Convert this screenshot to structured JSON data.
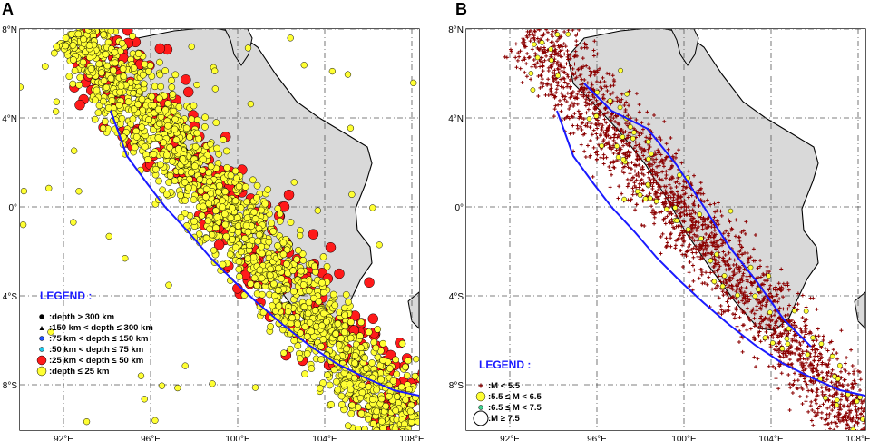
{
  "panels": [
    {
      "letter": "A",
      "legend": {
        "title": "LEGEND :",
        "items": [
          {
            "label": ":depth > 300 km",
            "marker": "dot",
            "color": "#000000"
          },
          {
            "label": ":150 km < depth ≤ 300 km",
            "marker": "triangle",
            "color": "#000000"
          },
          {
            "label": ":75 km < depth ≤ 150 km",
            "marker": "dot",
            "color": "#1f4fff"
          },
          {
            "label": ":50 km < depth ≤ 75 km",
            "marker": "dot",
            "color": "#21c7e8"
          },
          {
            "label": ":25 km < depth ≤ 50 km",
            "marker": "dot",
            "color": "#ff1a1a"
          },
          {
            "label": ":depth ≤ 25 km",
            "marker": "dot",
            "color": "#ffff33"
          }
        ]
      }
    },
    {
      "letter": "B",
      "legend": {
        "title": "LEGEND :",
        "items": [
          {
            "label": ":M < 5.5",
            "marker": "cross",
            "color": "#8b0000"
          },
          {
            "label": ":5.5 ≤ M < 6.5",
            "marker": "dot",
            "color": "#ffff33"
          },
          {
            "label": ":6.5 ≤ M < 7.5",
            "marker": "dot",
            "color": "#3ecf8e"
          },
          {
            "label": ":M ≥ 7.5",
            "marker": "circle",
            "color": "#ffffff"
          }
        ]
      }
    }
  ],
  "axes": {
    "lon_ticks": [
      "92°E",
      "96°E",
      "100°E",
      "104°E",
      "108°E"
    ],
    "lat_ticks": [
      "8°N",
      "4°N",
      "0°",
      "4°S",
      "8°S"
    ]
  },
  "colors": {
    "land": "#d9d9d9",
    "trench": "#1a1aff",
    "shallow": "#ffff33",
    "intermediate": "#ff1a1a",
    "small_event": "#8b0000"
  }
}
